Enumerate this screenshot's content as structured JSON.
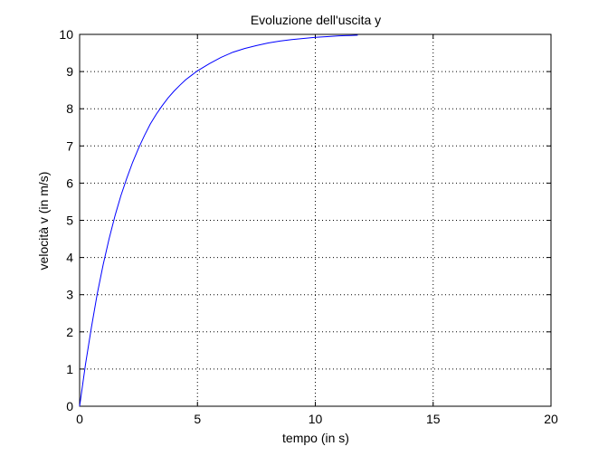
{
  "chart_data": {
    "type": "line",
    "title": "Evoluzione dell'uscita y",
    "xlabel": "tempo (in s)",
    "ylabel": "velocità v (in m/s)",
    "xlim": [
      0,
      20
    ],
    "ylim": [
      0,
      10
    ],
    "xticks": [
      "0",
      "5",
      "10",
      "15",
      "20"
    ],
    "yticks": [
      "0",
      "1",
      "2",
      "3",
      "4",
      "5",
      "6",
      "7",
      "8",
      "9",
      "10"
    ],
    "grid": true,
    "grid_style": "dotted",
    "series": [
      {
        "color": "#0000ff",
        "x": [
          0,
          0.25,
          0.5,
          0.75,
          1,
          1.25,
          1.5,
          1.75,
          2,
          2.25,
          2.5,
          2.75,
          3,
          3.25,
          3.5,
          3.75,
          4,
          4.25,
          4.5,
          4.75,
          5,
          5.5,
          6,
          6.5,
          7,
          7.5,
          8,
          8.5,
          9,
          9.5,
          10,
          10.5,
          11,
          11.5,
          11.8
        ],
        "y": [
          0,
          1.13,
          2.12,
          3.03,
          3.81,
          4.5,
          5.12,
          5.66,
          6.13,
          6.56,
          6.94,
          7.28,
          7.59,
          7.85,
          8.08,
          8.29,
          8.47,
          8.63,
          8.78,
          8.9,
          9.02,
          9.21,
          9.38,
          9.52,
          9.62,
          9.7,
          9.77,
          9.82,
          9.86,
          9.89,
          9.92,
          9.94,
          9.96,
          9.97,
          9.98
        ]
      }
    ]
  }
}
